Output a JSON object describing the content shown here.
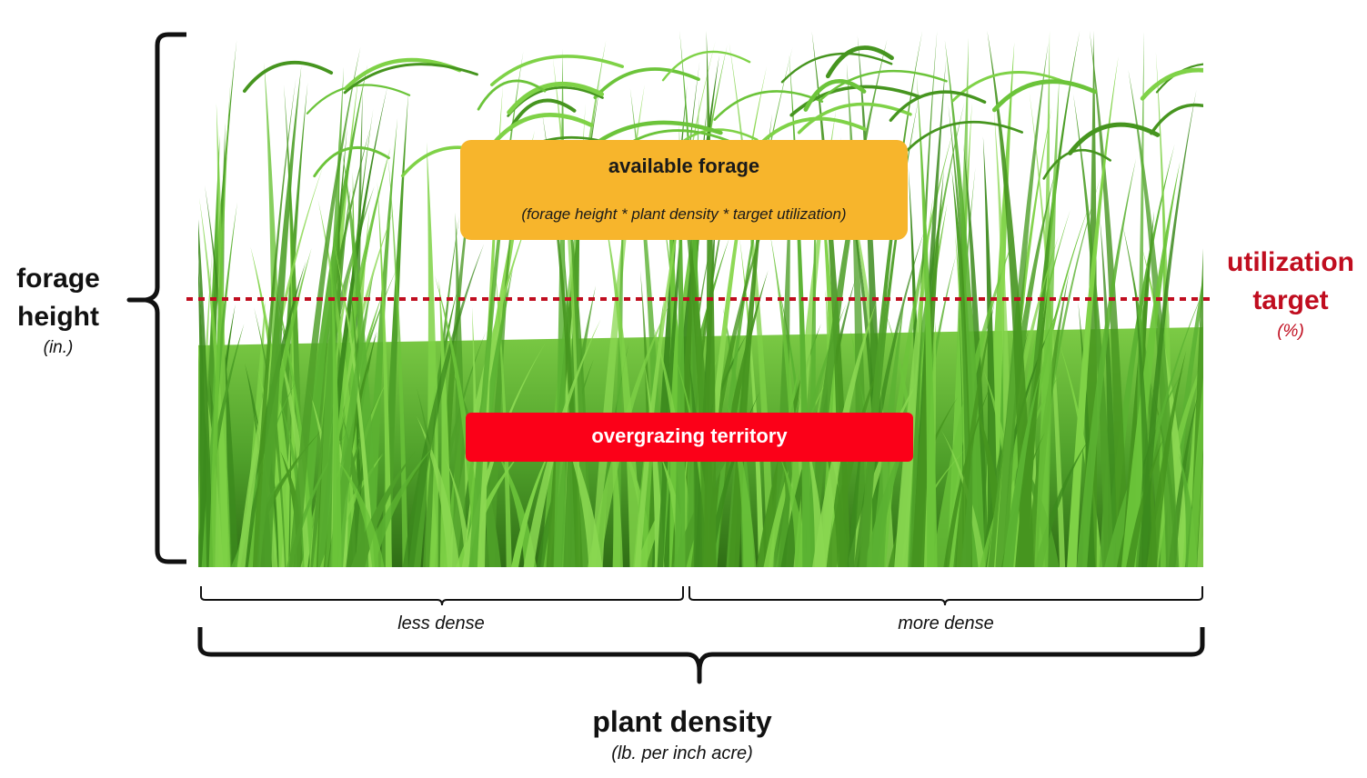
{
  "y_axis": {
    "title": "forage height",
    "unit": "(in.)"
  },
  "x_axis": {
    "title": "plant density",
    "unit": "(lb. per inch acre)"
  },
  "x_sections": {
    "left": "less dense",
    "right": "more dense"
  },
  "utilization_line": {
    "title": "utilization target",
    "unit": "(%)",
    "color": "#c00d1f"
  },
  "available_forage": {
    "title": "available forage",
    "formula": "(forage height * plant density * target utilization)",
    "color": "#f7b52c"
  },
  "overgrazing": {
    "label": "overgrazing territory",
    "color": "#fb0018"
  },
  "colors": {
    "grass_dark": "#2f7a16",
    "grass_light": "#6cc43a"
  }
}
